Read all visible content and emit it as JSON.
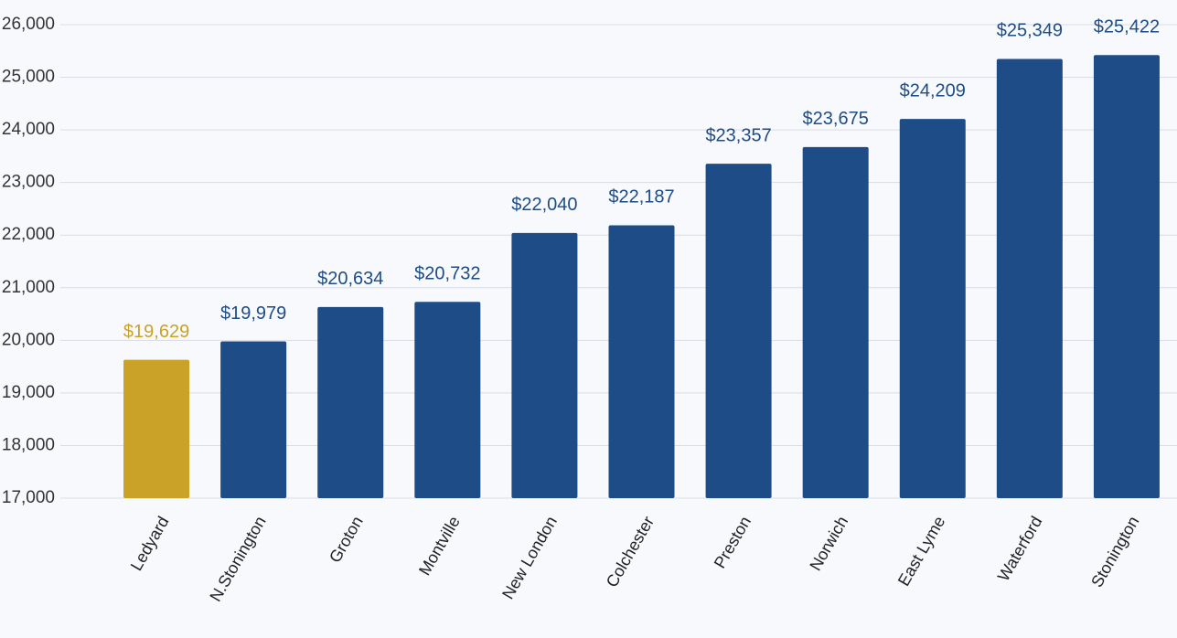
{
  "chart_data": {
    "type": "bar",
    "categories": [
      "Ledyard",
      "N.Stonington",
      "Groton",
      "Montville",
      "New London",
      "Colchester",
      "Preston",
      "Norwich",
      "East Lyme",
      "Waterford",
      "Stonington"
    ],
    "values": [
      19629,
      19979,
      20634,
      20732,
      22040,
      22187,
      23357,
      23675,
      24209,
      25349,
      25422
    ],
    "value_labels": [
      "$19,629",
      "$19,979",
      "$20,634",
      "$20,732",
      "$22,040",
      "$22,187",
      "$23,357",
      "$23,675",
      "$24,209",
      "$25,349",
      "$25,422"
    ],
    "colors": [
      "#c9a227",
      "#1d4c87",
      "#1d4c87",
      "#1d4c87",
      "#1d4c87",
      "#1d4c87",
      "#1d4c87",
      "#1d4c87",
      "#1d4c87",
      "#1d4c87",
      "#1d4c87"
    ],
    "ylim": [
      17000,
      26000
    ],
    "yticks": [
      {
        "value": 17000,
        "label": "17,000"
      },
      {
        "value": 18000,
        "label": "18,000"
      },
      {
        "value": 19000,
        "label": "19,000"
      },
      {
        "value": 20000,
        "label": "20,000"
      },
      {
        "value": 21000,
        "label": "21,000"
      },
      {
        "value": 22000,
        "label": "22,000"
      },
      {
        "value": 23000,
        "label": "23,000"
      },
      {
        "value": 24000,
        "label": "24,000"
      },
      {
        "value": 25000,
        "label": "25,000"
      },
      {
        "value": 26000,
        "label": "26,000"
      }
    ],
    "grid": true
  }
}
